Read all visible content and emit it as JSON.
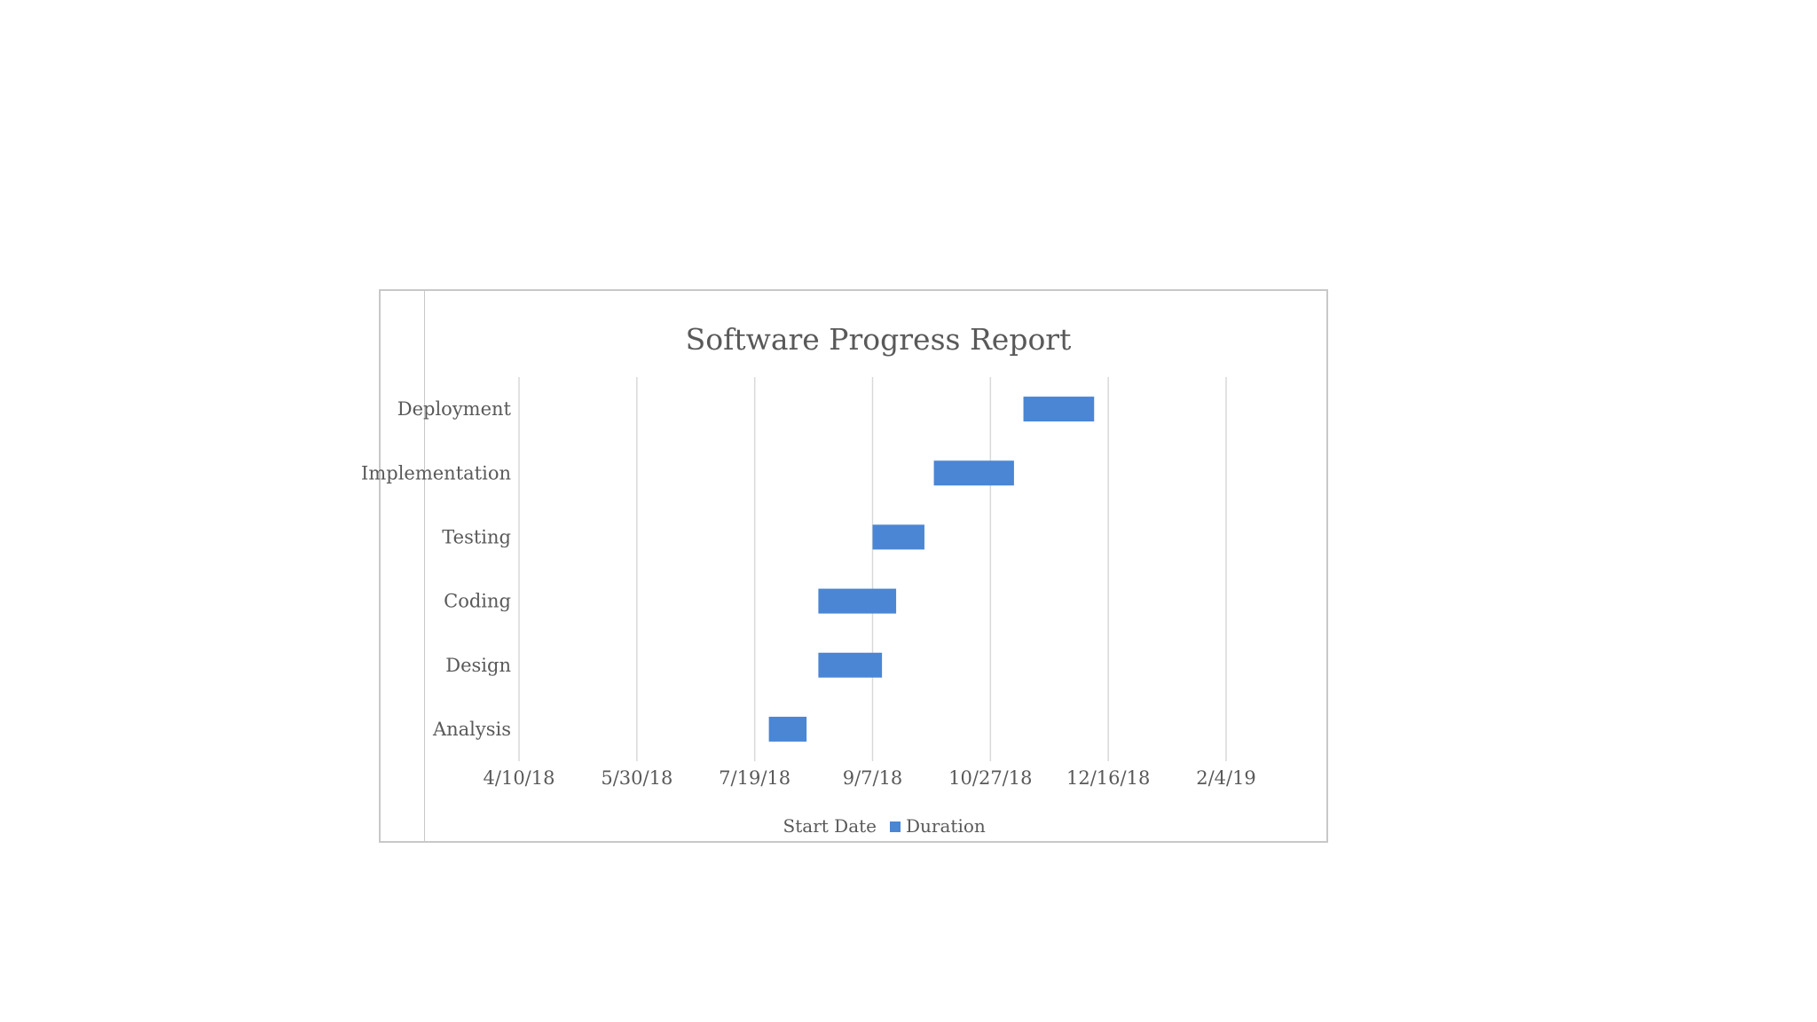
{
  "chart_data": {
    "type": "bar",
    "orientation": "horizontal",
    "stacked": true,
    "title": "Software Progress Report",
    "xlabel": "",
    "ylabel": "",
    "categories": [
      "Analysis",
      "Design",
      "Coding",
      "Testing",
      "Implementation",
      "Deployment"
    ],
    "x_tick_labels": [
      "4/10/18",
      "5/30/18",
      "7/19/18",
      "9/7/18",
      "10/27/18",
      "12/16/18",
      "2/4/19"
    ],
    "xlim": [
      "4/10/18",
      "2/4/19"
    ],
    "grid": true,
    "legend_position": "bottom",
    "series": [
      {
        "name": "Start Date",
        "visible": false,
        "values": [
          "7/25/18",
          "8/15/18",
          "8/15/18",
          "9/7/18",
          "10/3/18",
          "11/10/18"
        ]
      },
      {
        "name": "Duration",
        "color": "#4a86d4",
        "values": [
          16,
          27,
          33,
          22,
          34,
          30
        ]
      }
    ]
  }
}
